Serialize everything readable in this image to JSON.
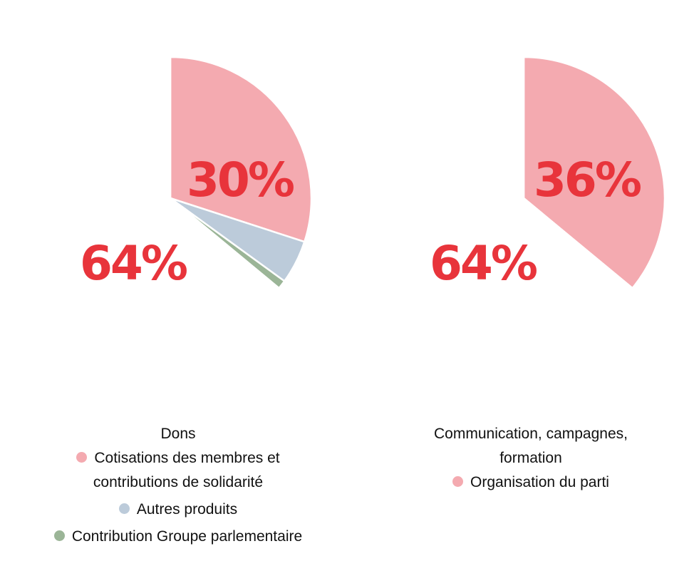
{
  "chart_data": [
    {
      "type": "pie",
      "categories": [
        "Dons",
        "Cotisations des membres et contributions de solidarité",
        "Autres produits",
        "Contribution Groupe parlementaire"
      ],
      "values": [
        64,
        30,
        5,
        1
      ],
      "labels": [
        "64%",
        "30%",
        "",
        ""
      ],
      "colors": [
        "#ffffff",
        "#f4aab0",
        "#bccbda",
        "#9bb597"
      ],
      "label_color": "#e8343b",
      "legend": [
        {
          "text": "Dons",
          "color": ""
        },
        {
          "text": "Cotisations des membres et contributions de solidarité",
          "color": "#f4aab0"
        },
        {
          "text": "Autres produits",
          "color": "#bccbda"
        },
        {
          "text": "Contribution Groupe parlementaire",
          "color": "#9bb597"
        }
      ]
    },
    {
      "type": "pie",
      "categories": [
        "Communication, campagnes, formation",
        "Organisation du parti"
      ],
      "values": [
        64,
        36
      ],
      "labels": [
        "64%",
        "36%"
      ],
      "colors": [
        "#ffffff",
        "#f4aab0"
      ],
      "label_color": "#e8343b",
      "legend": [
        {
          "text": "Communication, campagnes, formation",
          "color": ""
        },
        {
          "text": "Organisation du parti",
          "color": "#f4aab0"
        }
      ]
    }
  ]
}
